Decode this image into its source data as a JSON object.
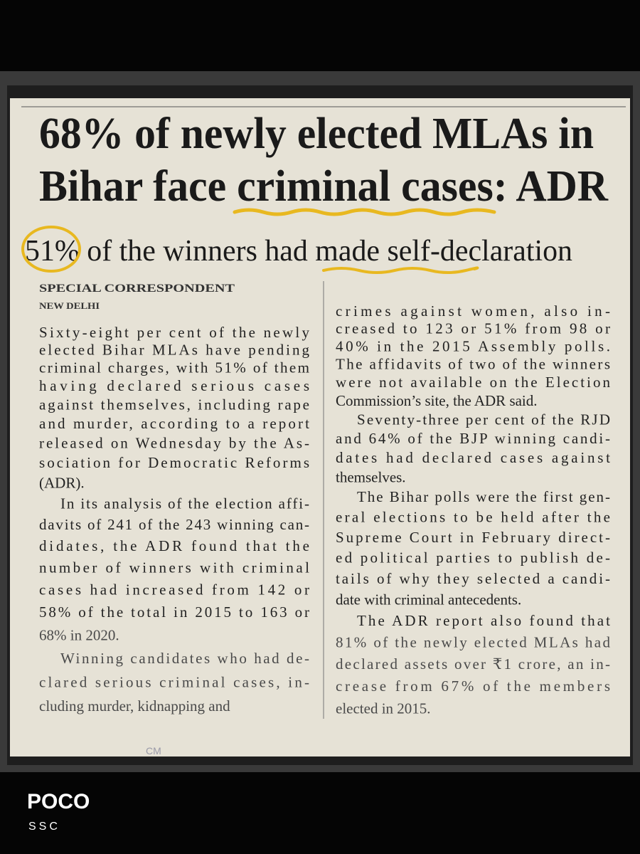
{
  "headline": [
    "68% of newly elected MLAs in",
    "Bihar face criminal cases: ADR"
  ],
  "subheadline": "51% of the winners had made self-declaration",
  "byline": "SPECIAL CORRESPONDENT",
  "dateline": "NEW DELHI",
  "columns": [
    [
      [
        "Sixty-eight per cent of the newly",
        "elected Bihar MLAs have pending",
        "criminal charges, with 51% of them",
        "having declared serious cases",
        "against themselves, including rape",
        "and murder, according to a report",
        "released on Wednesday by the As-",
        "sociation for Democratic Reforms",
        "(ADR)."
      ],
      [
        "In its analysis of the election affi-",
        "davits of 241 of the 243 winning can-",
        "didates, the ADR found that the",
        "number of winners with criminal",
        "cases had increased from 142 or",
        "58% of the total in 2015 to 163 or",
        "68% in 2020."
      ],
      [
        "Winning candidates who had de-",
        "clared serious criminal cases, in-",
        "cluding murder, kidnapping and"
      ]
    ],
    [
      [
        "crimes against women, also in-",
        "creased to 123 or 51% from 98 or",
        "40% in the 2015 Assembly polls.",
        "The affidavits of two of the winners",
        "were not available on the Election",
        "Commission’s site, the ADR said."
      ],
      [
        "Seventy-three per cent of the RJD",
        "and 64% of the BJP winning candi-",
        "dates had declared cases against",
        "themselves."
      ],
      [
        "The Bihar polls were the first gen-",
        "eral elections to be held after the",
        "Supreme Court in February direct-",
        "ed political parties to publish de-",
        "tails of why they selected a candi-",
        "date with criminal antecedents."
      ],
      [
        "The ADR report also found that",
        "81% of the newly elected MLAs had",
        "declared assets over ₹1 crore, an in-",
        "crease from 67% of the members",
        "elected in 2015."
      ]
    ]
  ],
  "page_mark": "CM",
  "watermark": {
    "brand": "POCO",
    "caption": "SSC"
  }
}
